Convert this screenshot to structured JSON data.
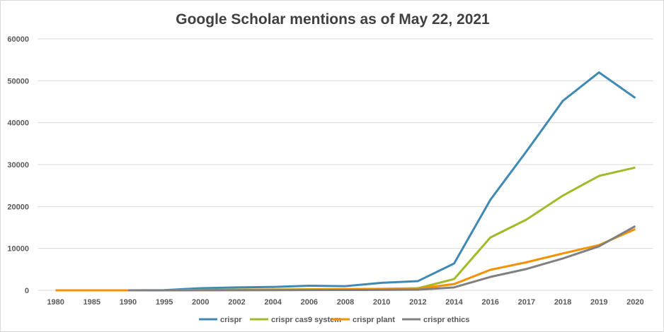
{
  "chart_data": {
    "type": "line",
    "title": "Google Scholar mentions as of May 22, 2021",
    "xlabel": "",
    "ylabel": "",
    "categories": [
      "1980",
      "1985",
      "1990",
      "1995",
      "2000",
      "2002",
      "2004",
      "2006",
      "2008",
      "2010",
      "2012",
      "2014",
      "2016",
      "2017",
      "2018",
      "2019",
      "2020"
    ],
    "ylim": [
      0,
      60000
    ],
    "yticks": [
      "0",
      "10000",
      "20000",
      "30000",
      "40000",
      "50000",
      "60000"
    ],
    "grid": true,
    "legend": "bottom",
    "series": [
      {
        "name": "crispr",
        "color": "#3f89b4",
        "values": [
          0,
          0,
          0,
          50,
          500,
          700,
          800,
          1100,
          1000,
          1800,
          2200,
          6400,
          21600,
          33200,
          45200,
          52000,
          45900
        ]
      },
      {
        "name": "crispr cas9 system",
        "color": "#a3b928",
        "values": [
          null,
          null,
          null,
          0,
          100,
          150,
          200,
          250,
          300,
          350,
          500,
          2700,
          12600,
          16900,
          22600,
          27300,
          29300
        ]
      },
      {
        "name": "crispr plant",
        "color": "#f59100",
        "values": [
          0,
          0,
          0,
          0,
          50,
          100,
          150,
          200,
          250,
          300,
          400,
          1500,
          4900,
          6700,
          8800,
          10800,
          14600
        ]
      },
      {
        "name": "crispr ethics",
        "color": "#808080",
        "values": [
          null,
          null,
          0,
          0,
          20,
          30,
          50,
          60,
          80,
          100,
          150,
          700,
          3200,
          5100,
          7600,
          10500,
          15300
        ]
      }
    ]
  }
}
